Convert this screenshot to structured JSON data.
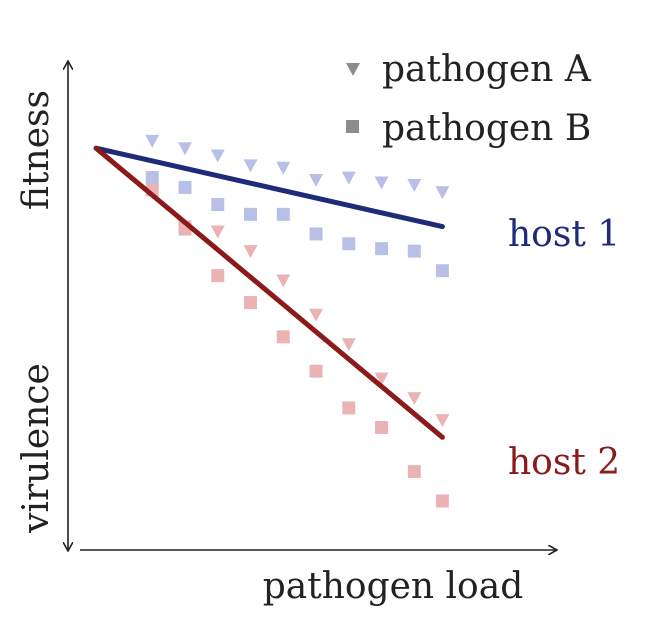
{
  "chart_data": {
    "type": "scatter",
    "title": "",
    "xlabel": "pathogen load",
    "ylabel_top": "fitness",
    "ylabel_bottom": "virulence",
    "xlim": [
      0,
      10
    ],
    "ylim": [
      0,
      10
    ],
    "grid": false,
    "legend_placement": "top-right",
    "legend": [
      {
        "label": "pathogen A",
        "marker": "triangle-down",
        "color": "#8c8c8c"
      },
      {
        "label": "pathogen B",
        "marker": "square",
        "color": "#8c8c8c"
      }
    ],
    "lines": [
      {
        "name": "host 1",
        "color": "#1f2a78",
        "x": [
          0.6,
          8.0
        ],
        "y": [
          8.2,
          6.6
        ]
      },
      {
        "name": "host 2",
        "color": "#8b1a1a",
        "x": [
          0.6,
          8.0
        ],
        "y": [
          8.2,
          2.3
        ]
      }
    ],
    "point_series": [
      {
        "host": "host 1",
        "pathogen": "pathogen A",
        "color": "#b9c0e8",
        "x": [
          1.8,
          2.5,
          3.2,
          3.9,
          4.6,
          5.3,
          6.0,
          6.7,
          7.4,
          8.0
        ],
        "y": [
          8.35,
          8.2,
          8.05,
          7.85,
          7.8,
          7.55,
          7.6,
          7.5,
          7.45,
          7.3
        ]
      },
      {
        "host": "host 1",
        "pathogen": "pathogen B",
        "color": "#b9c0e8",
        "x": [
          1.8,
          2.5,
          3.2,
          3.9,
          4.6,
          5.3,
          6.0,
          6.7,
          7.4,
          8.0
        ],
        "y": [
          7.6,
          7.4,
          7.05,
          6.85,
          6.85,
          6.45,
          6.25,
          6.15,
          6.1,
          5.7
        ]
      },
      {
        "host": "host 2",
        "pathogen": "pathogen A",
        "color": "#eab4b4",
        "x": [
          1.8,
          2.5,
          3.2,
          3.9,
          4.6,
          5.3,
          6.0,
          6.7,
          7.4,
          8.0
        ],
        "y": [
          7.3,
          6.6,
          6.5,
          6.1,
          5.5,
          4.8,
          4.2,
          3.5,
          3.1,
          2.65
        ]
      },
      {
        "host": "host 2",
        "pathogen": "pathogen B",
        "color": "#eab4b4",
        "x": [
          1.8,
          2.5,
          3.2,
          3.9,
          4.6,
          5.3,
          6.0,
          6.7,
          7.4,
          8.0
        ],
        "y": [
          7.35,
          6.55,
          5.6,
          5.05,
          4.35,
          3.65,
          2.9,
          2.5,
          1.6,
          1.0
        ]
      }
    ]
  }
}
